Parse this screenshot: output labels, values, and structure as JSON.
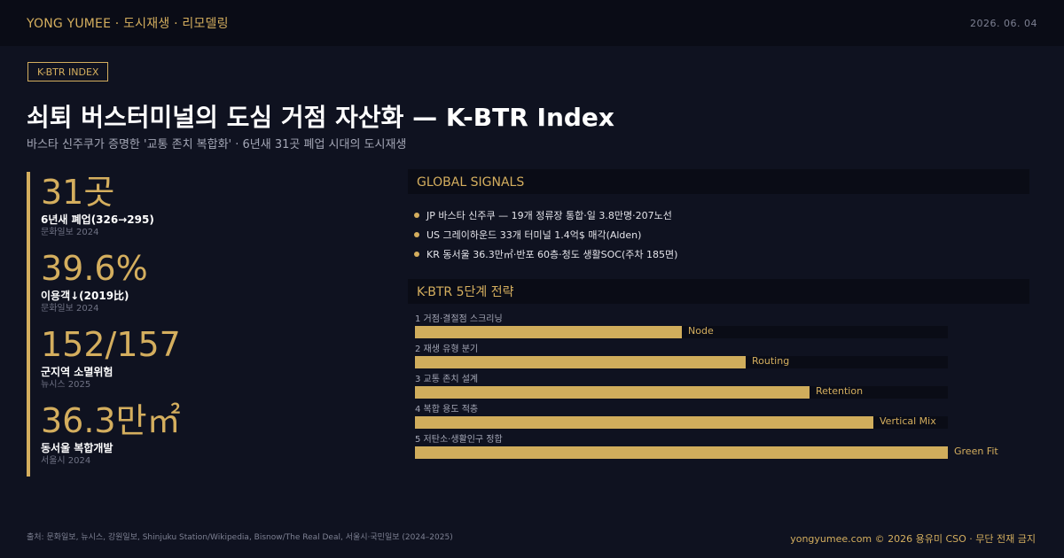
{
  "header": {
    "brand": "YONG YUMEE · 도시재생 · 리모델링",
    "date": "2026. 06. 04"
  },
  "tag": "K-BTR INDEX",
  "title": "쇠퇴 버스터미널의 도심 거점 자산화 — K-BTR Index",
  "subtitle": "바스타 신주쿠가 증명한 '교통 존치 복합화' · 6년새 31곳 폐업 시대의 도시재생",
  "stats": [
    {
      "value": "31곳",
      "label": "6년새 폐업(326→295)",
      "source": "문화일보 2024"
    },
    {
      "value": "39.6%",
      "label": "이용객↓(2019比)",
      "source": "문화일보 2024"
    },
    {
      "value": "152/157",
      "label": "군지역 소멸위험",
      "source": "뉴시스 2025"
    },
    {
      "value": "36.3만㎡",
      "label": "동서울 복합개발",
      "source": "서울시 2024"
    }
  ],
  "global_signals": {
    "heading": "GLOBAL SIGNALS",
    "items": [
      "JP  바스타 신주쿠 — 19개 정류장 통합·일 3.8만명·207노선",
      "US  그레이하운드 33개 터미널 1.4억$ 매각(Alden)",
      "KR  동서울 36.3만㎡·반포 60층·청도 생활SOC(주차 185면)"
    ]
  },
  "strategy": {
    "heading": "K-BTR 5단계 전략",
    "steps": [
      {
        "label": "1 거점·결절점 스크리닝",
        "tag": "Node",
        "level": 0.5
      },
      {
        "label": "2 재생 유형 분기",
        "tag": "Routing",
        "level": 0.62
      },
      {
        "label": "3 교통 존치 설계",
        "tag": "Retention",
        "level": 0.74
      },
      {
        "label": "4 복합 용도 적층",
        "tag": "Vertical Mix",
        "level": 0.86
      },
      {
        "label": "5 저탄소·생활인구 정합",
        "tag": "Green Fit",
        "level": 1.0
      }
    ]
  },
  "footer": {
    "sources": "출처: 문화일보, 뉴시스, 강원일보, Shinjuku Station/Wikipedia, Bisnow/The Real Deal, 서울시·국민일보 (2024–2025)",
    "copyright": "yongyumee.com  ©  2026 용유미 CSO  ·  무단 전재 금지"
  }
}
